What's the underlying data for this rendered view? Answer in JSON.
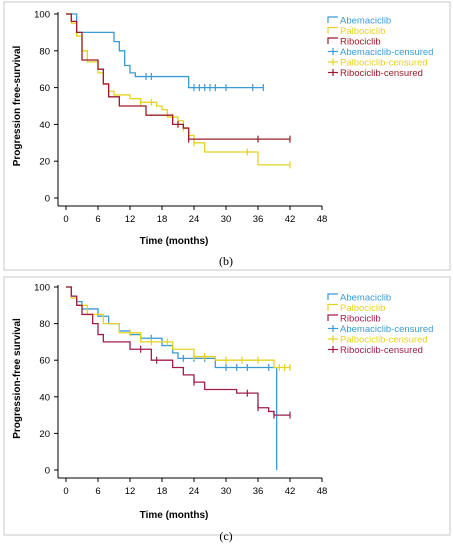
{
  "chart_data": [
    {
      "type": "line",
      "panel_label": "(b)",
      "xlabel": "Time (months)",
      "ylabel": "Progression free-survival",
      "xlim": [
        0,
        48
      ],
      "ylim": [
        0,
        100
      ],
      "xticks": [
        0,
        6,
        12,
        18,
        24,
        30,
        36,
        42,
        48
      ],
      "yticks": [
        0,
        20,
        40,
        60,
        80,
        100
      ],
      "legend_position": "top-right",
      "grid": false,
      "series": [
        {
          "name": "Abemaciclib",
          "censored_name": "Abemaciclib-censured",
          "color": "#3a9bd5",
          "steps": [
            [
              0,
              100
            ],
            [
              2,
              90
            ],
            [
              8,
              90
            ],
            [
              9,
              85
            ],
            [
              10,
              80
            ],
            [
              11,
              72
            ],
            [
              12,
              68
            ],
            [
              13,
              66
            ],
            [
              22,
              66
            ],
            [
              23,
              60
            ],
            [
              37,
              60
            ]
          ],
          "censor_x": [
            15,
            16,
            24,
            25,
            26,
            27,
            28,
            30,
            35,
            37
          ]
        },
        {
          "name": "Palbociclib",
          "censored_name": "Palbociclib-censured",
          "color": "#e6d21f",
          "steps": [
            [
              0,
              100
            ],
            [
              1,
              95
            ],
            [
              2,
              88
            ],
            [
              3,
              80
            ],
            [
              4,
              74
            ],
            [
              6,
              68
            ],
            [
              7,
              62
            ],
            [
              8,
              58
            ],
            [
              9,
              56
            ],
            [
              12,
              54
            ],
            [
              14,
              52
            ],
            [
              17,
              50
            ],
            [
              18,
              48
            ],
            [
              19,
              44
            ],
            [
              21,
              42
            ],
            [
              22,
              38
            ],
            [
              23,
              34
            ],
            [
              24,
              30
            ],
            [
              26,
              25
            ],
            [
              34,
              25
            ],
            [
              36,
              18
            ],
            [
              42,
              18
            ]
          ],
          "censor_x": [
            14,
            16,
            20,
            22,
            24,
            34,
            42
          ]
        },
        {
          "name": "Ribociclib",
          "censored_name": "Ribociclib-censured",
          "color": "#9a1b2a",
          "steps": [
            [
              0,
              100
            ],
            [
              1,
              96
            ],
            [
              2,
              90
            ],
            [
              3,
              75
            ],
            [
              6,
              70
            ],
            [
              7,
              62
            ],
            [
              8,
              55
            ],
            [
              10,
              50
            ],
            [
              15,
              45
            ],
            [
              20,
              40
            ],
            [
              22,
              38
            ],
            [
              23,
              32
            ],
            [
              42,
              32
            ]
          ],
          "censor_x": [
            21,
            23,
            36,
            42
          ]
        }
      ]
    },
    {
      "type": "line",
      "panel_label": "(c)",
      "xlabel": "Time (months)",
      "ylabel": "Progression-free survival",
      "xlim": [
        0,
        48
      ],
      "ylim": [
        0,
        100
      ],
      "xticks": [
        0,
        6,
        12,
        18,
        24,
        30,
        36,
        42,
        48
      ],
      "yticks": [
        0,
        20,
        40,
        60,
        80,
        100
      ],
      "legend_position": "top-right",
      "grid": false,
      "series": [
        {
          "name": "Abemaciclib",
          "censored_name": "Abemaciclib-censured",
          "color": "#3a9bd5",
          "steps": [
            [
              0,
              100
            ],
            [
              1,
              95
            ],
            [
              2,
              92
            ],
            [
              3,
              88
            ],
            [
              6,
              84
            ],
            [
              8,
              80
            ],
            [
              10,
              76
            ],
            [
              12,
              74
            ],
            [
              14,
              72
            ],
            [
              18,
              68
            ],
            [
              20,
              64
            ],
            [
              21,
              61
            ],
            [
              27,
              61
            ],
            [
              28,
              56
            ],
            [
              39,
              56
            ],
            [
              39.5,
              0
            ]
          ],
          "censor_x": [
            14,
            16,
            22,
            24,
            26,
            30,
            32,
            34,
            38
          ]
        },
        {
          "name": "Palbociclib",
          "censored_name": "Palbociclib-censured",
          "color": "#e6d21f",
          "steps": [
            [
              0,
              100
            ],
            [
              1,
              94
            ],
            [
              2,
              90
            ],
            [
              4,
              85
            ],
            [
              7,
              80
            ],
            [
              10,
              75
            ],
            [
              14,
              70
            ],
            [
              20,
              66
            ],
            [
              24,
              62
            ],
            [
              28,
              60
            ],
            [
              39,
              56
            ],
            [
              42,
              56
            ]
          ],
          "censor_x": [
            12,
            16,
            19,
            24,
            26,
            30,
            33,
            36,
            40,
            41,
            42
          ]
        },
        {
          "name": "Ribociclib",
          "censored_name": "Ribociclib-censured",
          "color": "#9e1e4a",
          "steps": [
            [
              0,
              100
            ],
            [
              1,
              95
            ],
            [
              2,
              90
            ],
            [
              3,
              85
            ],
            [
              5,
              80
            ],
            [
              6,
              74
            ],
            [
              7,
              70
            ],
            [
              12,
              66
            ],
            [
              16,
              60
            ],
            [
              20,
              56
            ],
            [
              22,
              52
            ],
            [
              24,
              48
            ],
            [
              26,
              44
            ],
            [
              32,
              42
            ],
            [
              36,
              34
            ],
            [
              38,
              32
            ],
            [
              39,
              30
            ],
            [
              42,
              30
            ]
          ],
          "censor_x": [
            14,
            17,
            24,
            34,
            36,
            39,
            42
          ]
        }
      ]
    }
  ]
}
